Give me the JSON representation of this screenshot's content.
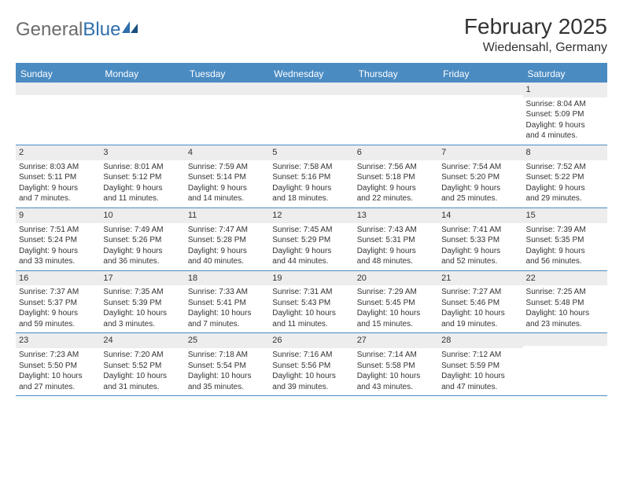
{
  "logo": {
    "text_gray": "General",
    "text_blue": "Blue"
  },
  "title": "February 2025",
  "location": "Wiedensahl, Germany",
  "colors": {
    "header_blue": "#4a8bc2",
    "strip_gray": "#ededed",
    "text": "#333333",
    "logo_gray": "#6b6b6b",
    "logo_blue": "#2f6fac"
  },
  "day_names": [
    "Sunday",
    "Monday",
    "Tuesday",
    "Wednesday",
    "Thursday",
    "Friday",
    "Saturday"
  ],
  "weeks": [
    [
      {
        "n": "",
        "sr": "",
        "ss": "",
        "d1": "",
        "d2": ""
      },
      {
        "n": "",
        "sr": "",
        "ss": "",
        "d1": "",
        "d2": ""
      },
      {
        "n": "",
        "sr": "",
        "ss": "",
        "d1": "",
        "d2": ""
      },
      {
        "n": "",
        "sr": "",
        "ss": "",
        "d1": "",
        "d2": ""
      },
      {
        "n": "",
        "sr": "",
        "ss": "",
        "d1": "",
        "d2": ""
      },
      {
        "n": "",
        "sr": "",
        "ss": "",
        "d1": "",
        "d2": ""
      },
      {
        "n": "1",
        "sr": "Sunrise: 8:04 AM",
        "ss": "Sunset: 5:09 PM",
        "d1": "Daylight: 9 hours",
        "d2": "and 4 minutes."
      }
    ],
    [
      {
        "n": "2",
        "sr": "Sunrise: 8:03 AM",
        "ss": "Sunset: 5:11 PM",
        "d1": "Daylight: 9 hours",
        "d2": "and 7 minutes."
      },
      {
        "n": "3",
        "sr": "Sunrise: 8:01 AM",
        "ss": "Sunset: 5:12 PM",
        "d1": "Daylight: 9 hours",
        "d2": "and 11 minutes."
      },
      {
        "n": "4",
        "sr": "Sunrise: 7:59 AM",
        "ss": "Sunset: 5:14 PM",
        "d1": "Daylight: 9 hours",
        "d2": "and 14 minutes."
      },
      {
        "n": "5",
        "sr": "Sunrise: 7:58 AM",
        "ss": "Sunset: 5:16 PM",
        "d1": "Daylight: 9 hours",
        "d2": "and 18 minutes."
      },
      {
        "n": "6",
        "sr": "Sunrise: 7:56 AM",
        "ss": "Sunset: 5:18 PM",
        "d1": "Daylight: 9 hours",
        "d2": "and 22 minutes."
      },
      {
        "n": "7",
        "sr": "Sunrise: 7:54 AM",
        "ss": "Sunset: 5:20 PM",
        "d1": "Daylight: 9 hours",
        "d2": "and 25 minutes."
      },
      {
        "n": "8",
        "sr": "Sunrise: 7:52 AM",
        "ss": "Sunset: 5:22 PM",
        "d1": "Daylight: 9 hours",
        "d2": "and 29 minutes."
      }
    ],
    [
      {
        "n": "9",
        "sr": "Sunrise: 7:51 AM",
        "ss": "Sunset: 5:24 PM",
        "d1": "Daylight: 9 hours",
        "d2": "and 33 minutes."
      },
      {
        "n": "10",
        "sr": "Sunrise: 7:49 AM",
        "ss": "Sunset: 5:26 PM",
        "d1": "Daylight: 9 hours",
        "d2": "and 36 minutes."
      },
      {
        "n": "11",
        "sr": "Sunrise: 7:47 AM",
        "ss": "Sunset: 5:28 PM",
        "d1": "Daylight: 9 hours",
        "d2": "and 40 minutes."
      },
      {
        "n": "12",
        "sr": "Sunrise: 7:45 AM",
        "ss": "Sunset: 5:29 PM",
        "d1": "Daylight: 9 hours",
        "d2": "and 44 minutes."
      },
      {
        "n": "13",
        "sr": "Sunrise: 7:43 AM",
        "ss": "Sunset: 5:31 PM",
        "d1": "Daylight: 9 hours",
        "d2": "and 48 minutes."
      },
      {
        "n": "14",
        "sr": "Sunrise: 7:41 AM",
        "ss": "Sunset: 5:33 PM",
        "d1": "Daylight: 9 hours",
        "d2": "and 52 minutes."
      },
      {
        "n": "15",
        "sr": "Sunrise: 7:39 AM",
        "ss": "Sunset: 5:35 PM",
        "d1": "Daylight: 9 hours",
        "d2": "and 56 minutes."
      }
    ],
    [
      {
        "n": "16",
        "sr": "Sunrise: 7:37 AM",
        "ss": "Sunset: 5:37 PM",
        "d1": "Daylight: 9 hours",
        "d2": "and 59 minutes."
      },
      {
        "n": "17",
        "sr": "Sunrise: 7:35 AM",
        "ss": "Sunset: 5:39 PM",
        "d1": "Daylight: 10 hours",
        "d2": "and 3 minutes."
      },
      {
        "n": "18",
        "sr": "Sunrise: 7:33 AM",
        "ss": "Sunset: 5:41 PM",
        "d1": "Daylight: 10 hours",
        "d2": "and 7 minutes."
      },
      {
        "n": "19",
        "sr": "Sunrise: 7:31 AM",
        "ss": "Sunset: 5:43 PM",
        "d1": "Daylight: 10 hours",
        "d2": "and 11 minutes."
      },
      {
        "n": "20",
        "sr": "Sunrise: 7:29 AM",
        "ss": "Sunset: 5:45 PM",
        "d1": "Daylight: 10 hours",
        "d2": "and 15 minutes."
      },
      {
        "n": "21",
        "sr": "Sunrise: 7:27 AM",
        "ss": "Sunset: 5:46 PM",
        "d1": "Daylight: 10 hours",
        "d2": "and 19 minutes."
      },
      {
        "n": "22",
        "sr": "Sunrise: 7:25 AM",
        "ss": "Sunset: 5:48 PM",
        "d1": "Daylight: 10 hours",
        "d2": "and 23 minutes."
      }
    ],
    [
      {
        "n": "23",
        "sr": "Sunrise: 7:23 AM",
        "ss": "Sunset: 5:50 PM",
        "d1": "Daylight: 10 hours",
        "d2": "and 27 minutes."
      },
      {
        "n": "24",
        "sr": "Sunrise: 7:20 AM",
        "ss": "Sunset: 5:52 PM",
        "d1": "Daylight: 10 hours",
        "d2": "and 31 minutes."
      },
      {
        "n": "25",
        "sr": "Sunrise: 7:18 AM",
        "ss": "Sunset: 5:54 PM",
        "d1": "Daylight: 10 hours",
        "d2": "and 35 minutes."
      },
      {
        "n": "26",
        "sr": "Sunrise: 7:16 AM",
        "ss": "Sunset: 5:56 PM",
        "d1": "Daylight: 10 hours",
        "d2": "and 39 minutes."
      },
      {
        "n": "27",
        "sr": "Sunrise: 7:14 AM",
        "ss": "Sunset: 5:58 PM",
        "d1": "Daylight: 10 hours",
        "d2": "and 43 minutes."
      },
      {
        "n": "28",
        "sr": "Sunrise: 7:12 AM",
        "ss": "Sunset: 5:59 PM",
        "d1": "Daylight: 10 hours",
        "d2": "and 47 minutes."
      },
      {
        "n": "",
        "sr": "",
        "ss": "",
        "d1": "",
        "d2": ""
      }
    ]
  ]
}
